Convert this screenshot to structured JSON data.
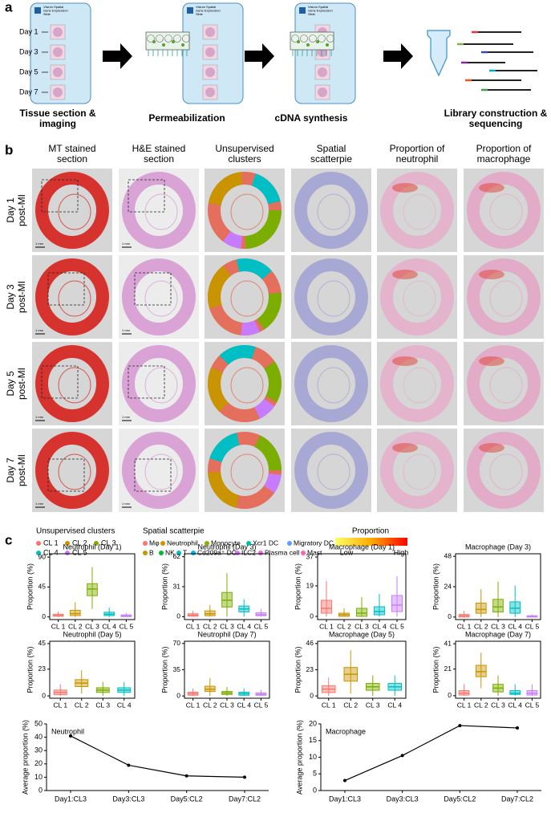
{
  "panel_a": {
    "label": "a",
    "slide_label": [
      "Visium Spatial",
      "Gene Expression",
      "Slide"
    ],
    "days": [
      "Day 1",
      "Day 3",
      "Day 5",
      "Day 7"
    ],
    "steps": [
      [
        "Tissue section &",
        "imaging"
      ],
      [
        "Permeabilization"
      ],
      [
        "cDNA synthesis"
      ],
      [
        "Library construction &",
        "sequencing"
      ]
    ]
  },
  "panel_b": {
    "label": "b",
    "columns": [
      [
        "MT stained",
        "section"
      ],
      [
        "H&E stained",
        "section"
      ],
      [
        "Unsupervised",
        "clusters"
      ],
      [
        "Spatial",
        "scatterpie"
      ],
      [
        "Proportion of",
        "neutrophil"
      ],
      [
        "Proportion of",
        "macrophage"
      ]
    ],
    "rows": [
      [
        "Day 1",
        "post-MI"
      ],
      [
        "Day 3",
        "post-MI"
      ],
      [
        "Day 5",
        "post-MI"
      ],
      [
        "Day 7",
        "post-MI"
      ]
    ],
    "scale_bar": "1 mm",
    "cluster_legend": {
      "title": "Unsupervised clusters",
      "items": [
        {
          "name": "CL 1",
          "color": "#f8766d"
        },
        {
          "name": "CL 2",
          "color": "#c99400"
        },
        {
          "name": "CL 3",
          "color": "#7cae00"
        },
        {
          "name": "CL 4",
          "color": "#00bfc4"
        },
        {
          "name": "CL 5",
          "color": "#c77cff"
        }
      ]
    },
    "scatterpie_legend": {
      "title": "Spatial scatterpie",
      "items": [
        {
          "name": "Mφ",
          "color": "#f8766d"
        },
        {
          "name": "Neutrophil",
          "color": "#d39200"
        },
        {
          "name": "Monocyte",
          "color": "#93aa00"
        },
        {
          "name": "Xcr1 DC",
          "color": "#00c1a7"
        },
        {
          "name": "Migratory DC",
          "color": "#619cff"
        },
        {
          "name": "B",
          "color": "#b79f00"
        },
        {
          "name": "NK",
          "color": "#00ba38"
        },
        {
          "name": "T",
          "color": "#00bfc4"
        },
        {
          "name": "Cd209a⁺ DC",
          "color": "#00b4f0"
        },
        {
          "name": "ILC2",
          "color": "#db72fb"
        },
        {
          "name": "Plasma cell",
          "color": "#f564e3"
        },
        {
          "name": "Mast",
          "color": "#ff64b0"
        }
      ]
    },
    "proportion_legend": {
      "title": "Proportion",
      "low": "Low",
      "high": "High",
      "colors": [
        "#ffff66",
        "#ff0000"
      ]
    }
  },
  "panel_c": {
    "label": "c"
  },
  "chart_data": [
    {
      "type": "box",
      "title": "Neutrophil (Day 1)",
      "ylabel": "Proportion (%)",
      "categories": [
        "CL 1",
        "CL 2",
        "CL 3",
        "CL 4",
        "CL 5"
      ],
      "colors": [
        "#f8766d",
        "#c99400",
        "#7cae00",
        "#00bfc4",
        "#c77cff"
      ],
      "boxes": [
        {
          "whislo": 0,
          "q1": 1,
          "median": 2,
          "q3": 4,
          "whishi": 8
        },
        {
          "whislo": 0,
          "q1": 2,
          "median": 5,
          "q3": 10,
          "whishi": 22
        },
        {
          "whislo": 12,
          "q1": 32,
          "median": 42,
          "q3": 50,
          "whishi": 75
        },
        {
          "whislo": 0,
          "q1": 2,
          "median": 4,
          "q3": 7,
          "whishi": 14
        },
        {
          "whislo": 0,
          "q1": 0.5,
          "median": 1.5,
          "q3": 3,
          "whishi": 6
        }
      ],
      "ylim": [
        -4,
        95
      ],
      "yticks": [
        0,
        45,
        90
      ]
    },
    {
      "type": "box",
      "title": "Neutrophil (Day 3)",
      "ylabel": "Proportion (%)",
      "categories": [
        "CL 1",
        "CL 2",
        "CL 3",
        "CL 4",
        "CL 5"
      ],
      "colors": [
        "#f8766d",
        "#c99400",
        "#7cae00",
        "#00bfc4",
        "#c77cff"
      ],
      "boxes": [
        {
          "whislo": 0,
          "q1": 0.5,
          "median": 1.5,
          "q3": 3,
          "whishi": 6
        },
        {
          "whislo": 0,
          "q1": 1,
          "median": 3,
          "q3": 6,
          "whishi": 12
        },
        {
          "whislo": 0,
          "q1": 10,
          "median": 17,
          "q3": 25,
          "whishi": 45
        },
        {
          "whislo": 0,
          "q1": 5,
          "median": 8,
          "q3": 11,
          "whishi": 18
        },
        {
          "whislo": 0,
          "q1": 1,
          "median": 2,
          "q3": 4,
          "whishi": 8
        }
      ],
      "ylim": [
        -3,
        65
      ],
      "yticks": [
        0,
        31,
        62
      ]
    },
    {
      "type": "box",
      "title": "Macrophage (Day 1)",
      "ylabel": "Proportion (%)",
      "categories": [
        "CL 1",
        "CL 2",
        "CL 3",
        "CL 4",
        "CL 5"
      ],
      "colors": [
        "#f8766d",
        "#c99400",
        "#7cae00",
        "#00bfc4",
        "#c77cff"
      ],
      "boxes": [
        {
          "whislo": 0,
          "q1": 2,
          "median": 5,
          "q3": 10,
          "whishi": 22
        },
        {
          "whislo": 0,
          "q1": 0,
          "median": 1,
          "q3": 2,
          "whishi": 5
        },
        {
          "whislo": 0,
          "q1": 0,
          "median": 2,
          "q3": 5,
          "whishi": 12
        },
        {
          "whislo": 0,
          "q1": 1,
          "median": 3,
          "q3": 6,
          "whishi": 14
        },
        {
          "whislo": 0,
          "q1": 3,
          "median": 7,
          "q3": 13,
          "whishi": 25
        }
      ],
      "ylim": [
        -2,
        39
      ],
      "yticks": [
        0,
        19,
        37
      ]
    },
    {
      "type": "box",
      "title": "Macrophage (Day 3)",
      "ylabel": "Proportion (%)",
      "categories": [
        "CL 1",
        "CL 2",
        "CL 3",
        "CL 4",
        "CL 5"
      ],
      "colors": [
        "#f8766d",
        "#c99400",
        "#7cae00",
        "#00bfc4",
        "#c77cff"
      ],
      "boxes": [
        {
          "whislo": 0,
          "q1": 0,
          "median": 1,
          "q3": 2,
          "whishi": 5
        },
        {
          "whislo": 0,
          "q1": 3,
          "median": 6,
          "q3": 11,
          "whishi": 22
        },
        {
          "whislo": 0,
          "q1": 4,
          "median": 8,
          "q3": 14,
          "whishi": 28
        },
        {
          "whislo": 0,
          "q1": 3,
          "median": 7,
          "q3": 12,
          "whishi": 25
        },
        {
          "whislo": 0,
          "q1": 0,
          "median": 0.5,
          "q3": 1,
          "whishi": 2
        }
      ],
      "ylim": [
        -2,
        50
      ],
      "yticks": [
        0,
        24,
        48
      ]
    },
    {
      "type": "box",
      "title": "Neutrophil (Day 5)",
      "ylabel": "Proportion (%)",
      "categories": [
        "CL 1",
        "CL 2",
        "CL 3",
        "CL 4"
      ],
      "colors": [
        "#f8766d",
        "#c99400",
        "#7cae00",
        "#00bfc4"
      ],
      "boxes": [
        {
          "whislo": 0,
          "q1": 1,
          "median": 3,
          "q3": 5,
          "whishi": 10
        },
        {
          "whislo": 2,
          "q1": 8,
          "median": 11,
          "q3": 14,
          "whishi": 22
        },
        {
          "whislo": 0,
          "q1": 3,
          "median": 5,
          "q3": 7,
          "whishi": 12
        },
        {
          "whislo": 0,
          "q1": 3,
          "median": 5,
          "q3": 7,
          "whishi": 12
        }
      ],
      "ylim": [
        -2,
        47
      ],
      "yticks": [
        0,
        23,
        45
      ]
    },
    {
      "type": "box",
      "title": "Neutrophil (Day 7)",
      "ylabel": "Proportion (%)",
      "categories": [
        "CL 1",
        "CL 2",
        "CL 3",
        "CL 4",
        "CL 5"
      ],
      "colors": [
        "#f8766d",
        "#c99400",
        "#7cae00",
        "#00bfc4",
        "#c77cff"
      ],
      "boxes": [
        {
          "whislo": 0,
          "q1": 1,
          "median": 3,
          "q3": 5,
          "whishi": 10
        },
        {
          "whislo": 0,
          "q1": 6,
          "median": 9,
          "q3": 13,
          "whishi": 24
        },
        {
          "whislo": 0,
          "q1": 2,
          "median": 4,
          "q3": 6,
          "whishi": 12
        },
        {
          "whislo": 0,
          "q1": 1,
          "median": 3,
          "q3": 5,
          "whishi": 10
        },
        {
          "whislo": 0,
          "q1": 1,
          "median": 2,
          "q3": 4,
          "whishi": 8
        }
      ],
      "ylim": [
        -3,
        73
      ],
      "yticks": [
        0,
        35,
        70
      ]
    },
    {
      "type": "box",
      "title": "Macrophage (Day 5)",
      "ylabel": "Proportion (%)",
      "categories": [
        "CL 1",
        "CL 2",
        "CL 3",
        "CL 4"
      ],
      "colors": [
        "#f8766d",
        "#c99400",
        "#7cae00",
        "#00bfc4"
      ],
      "boxes": [
        {
          "whislo": 0,
          "q1": 3,
          "median": 6,
          "q3": 9,
          "whishi": 16
        },
        {
          "whislo": 2,
          "q1": 13,
          "median": 19,
          "q3": 25,
          "whishi": 40
        },
        {
          "whislo": 0,
          "q1": 5,
          "median": 8,
          "q3": 11,
          "whishi": 18
        },
        {
          "whislo": 0,
          "q1": 5,
          "median": 8,
          "q3": 11,
          "whishi": 18
        }
      ],
      "ylim": [
        -2,
        48
      ],
      "yticks": [
        0,
        23,
        46
      ]
    },
    {
      "type": "box",
      "title": "Macrophage (Day 7)",
      "ylabel": "Proportion (%)",
      "categories": [
        "CL 1",
        "CL 2",
        "CL 3",
        "CL 4",
        "CL 5"
      ],
      "colors": [
        "#f8766d",
        "#c99400",
        "#7cae00",
        "#00bfc4",
        "#c77cff"
      ],
      "boxes": [
        {
          "whislo": 0,
          "q1": 0.5,
          "median": 2,
          "q3": 4,
          "whishi": 9
        },
        {
          "whislo": 6,
          "q1": 15,
          "median": 19,
          "q3": 24,
          "whishi": 34
        },
        {
          "whislo": 0,
          "q1": 3,
          "median": 6,
          "q3": 9,
          "whishi": 16
        },
        {
          "whislo": 0,
          "q1": 1,
          "median": 2,
          "q3": 4,
          "whishi": 9
        },
        {
          "whislo": 0,
          "q1": 0.5,
          "median": 2,
          "q3": 4,
          "whishi": 9
        }
      ],
      "ylim": [
        -2,
        43
      ],
      "yticks": [
        0,
        21,
        41
      ]
    },
    {
      "type": "line",
      "title": "Neutrophil",
      "ylabel": "Average proportion (%)",
      "categories": [
        "Day1:CL3",
        "Day3:CL3",
        "Day5:CL2",
        "Day7:CL2"
      ],
      "values": [
        41,
        19,
        11,
        10
      ],
      "color": "#000000",
      "ylim": [
        0,
        50
      ],
      "yticks": [
        0,
        10,
        20,
        30,
        40,
        50
      ]
    },
    {
      "type": "line",
      "title": "Macrophage",
      "ylabel": "Average proportion (%)",
      "categories": [
        "Day1:CL3",
        "Day3:CL3",
        "Day5:CL2",
        "Day7:CL2"
      ],
      "values": [
        3,
        10.5,
        19.5,
        18.8
      ],
      "color": "#000000",
      "ylim": [
        0,
        20
      ],
      "yticks": [
        0,
        5,
        10,
        15,
        20
      ]
    }
  ]
}
